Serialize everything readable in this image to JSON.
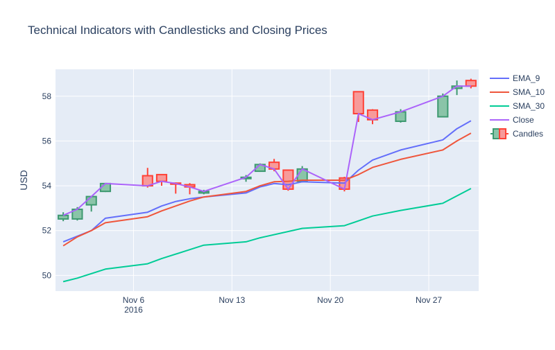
{
  "chart_data": {
    "type": "line",
    "title": "Technical Indicators with Candlesticks and Closing Prices",
    "xlabel": "",
    "ylabel": "USD",
    "x_ticks": [
      "Nov 6",
      "Nov 13",
      "Nov 20",
      "Nov 27"
    ],
    "x_tick_year": "2016",
    "y_ticks": [
      50,
      52,
      54,
      56,
      58
    ],
    "xlim": [
      "2016-11-01",
      "2016-11-30"
    ],
    "ylim": [
      49.3,
      59.2
    ],
    "grid": true,
    "legend_position": "top-right",
    "dates": [
      "2016-11-01",
      "2016-11-02",
      "2016-11-03",
      "2016-11-04",
      "2016-11-07",
      "2016-11-08",
      "2016-11-09",
      "2016-11-10",
      "2016-11-11",
      "2016-11-14",
      "2016-11-15",
      "2016-11-16",
      "2016-11-17",
      "2016-11-18",
      "2016-11-21",
      "2016-11-22",
      "2016-11-23",
      "2016-11-25",
      "2016-11-28",
      "2016-11-29",
      "2016-11-30"
    ],
    "candles": [
      {
        "open": 52.52,
        "high": 52.82,
        "low": 52.42,
        "close": 52.68
      },
      {
        "open": 52.52,
        "high": 53.05,
        "low": 52.45,
        "close": 52.95
      },
      {
        "open": 53.15,
        "high": 53.55,
        "low": 52.85,
        "close": 53.52
      },
      {
        "open": 53.75,
        "high": 54.12,
        "low": 53.72,
        "close": 54.1
      },
      {
        "open": 54.45,
        "high": 54.8,
        "low": 53.92,
        "close": 54.0
      },
      {
        "open": 54.5,
        "high": 54.52,
        "low": 54.0,
        "close": 54.2
      },
      {
        "open": 54.12,
        "high": 54.15,
        "low": 53.65,
        "close": 54.1
      },
      {
        "open": 54.05,
        "high": 54.12,
        "low": 53.62,
        "close": 53.95
      },
      {
        "open": 53.68,
        "high": 53.82,
        "low": 53.62,
        "close": 53.75
      },
      {
        "open": 54.32,
        "high": 54.48,
        "low": 54.18,
        "close": 54.38
      },
      {
        "open": 54.65,
        "high": 55.0,
        "low": 54.62,
        "close": 54.95
      },
      {
        "open": 55.05,
        "high": 55.2,
        "low": 54.65,
        "close": 54.75
      },
      {
        "open": 54.7,
        "high": 54.72,
        "low": 53.78,
        "close": 53.85
      },
      {
        "open": 54.2,
        "high": 54.88,
        "low": 54.15,
        "close": 54.75
      },
      {
        "open": 54.35,
        "high": 54.4,
        "low": 53.75,
        "close": 53.85
      },
      {
        "open": 58.2,
        "high": 58.2,
        "low": 56.85,
        "close": 57.22
      },
      {
        "open": 57.38,
        "high": 57.42,
        "low": 56.75,
        "close": 56.95
      },
      {
        "open": 56.88,
        "high": 57.42,
        "low": 56.82,
        "close": 57.3
      },
      {
        "open": 57.08,
        "high": 58.12,
        "low": 57.05,
        "close": 58.0
      },
      {
        "open": 58.35,
        "high": 58.7,
        "low": 58.05,
        "close": 58.45
      },
      {
        "open": 58.7,
        "high": 58.78,
        "low": 58.35,
        "close": 58.45
      }
    ],
    "series": [
      {
        "name": "EMA_9",
        "color": "#636efa",
        "points": [
          [
            "2016-11-01",
            51.5
          ],
          [
            "2016-11-03",
            52.0
          ],
          [
            "2016-11-04",
            52.55
          ],
          [
            "2016-11-07",
            52.82
          ],
          [
            "2016-11-08",
            53.1
          ],
          [
            "2016-11-09",
            53.3
          ],
          [
            "2016-11-10",
            53.42
          ],
          [
            "2016-11-11",
            53.5
          ],
          [
            "2016-11-14",
            53.68
          ],
          [
            "2016-11-15",
            53.95
          ],
          [
            "2016-11-16",
            54.1
          ],
          [
            "2016-11-17",
            54.05
          ],
          [
            "2016-11-18",
            54.18
          ],
          [
            "2016-11-21",
            54.12
          ],
          [
            "2016-11-22",
            54.7
          ],
          [
            "2016-11-23",
            55.15
          ],
          [
            "2016-11-25",
            55.6
          ],
          [
            "2016-11-28",
            56.05
          ],
          [
            "2016-11-29",
            56.55
          ],
          [
            "2016-11-30",
            56.9
          ]
        ]
      },
      {
        "name": "SMA_10",
        "color": "#ef553b",
        "points": [
          [
            "2016-11-01",
            51.32
          ],
          [
            "2016-11-02",
            51.72
          ],
          [
            "2016-11-03",
            52.0
          ],
          [
            "2016-11-04",
            52.35
          ],
          [
            "2016-11-07",
            52.62
          ],
          [
            "2016-11-08",
            52.88
          ],
          [
            "2016-11-09",
            53.1
          ],
          [
            "2016-11-10",
            53.32
          ],
          [
            "2016-11-11",
            53.5
          ],
          [
            "2016-11-14",
            53.75
          ],
          [
            "2016-11-15",
            54.0
          ],
          [
            "2016-11-16",
            54.18
          ],
          [
            "2016-11-17",
            54.2
          ],
          [
            "2016-11-18",
            54.25
          ],
          [
            "2016-11-21",
            54.25
          ],
          [
            "2016-11-22",
            54.5
          ],
          [
            "2016-11-23",
            54.82
          ],
          [
            "2016-11-25",
            55.18
          ],
          [
            "2016-11-28",
            55.6
          ],
          [
            "2016-11-29",
            56.0
          ],
          [
            "2016-11-30",
            56.35
          ]
        ]
      },
      {
        "name": "SMA_30",
        "color": "#00cc96",
        "points": [
          [
            "2016-11-01",
            49.72
          ],
          [
            "2016-11-02",
            49.88
          ],
          [
            "2016-11-04",
            50.28
          ],
          [
            "2016-11-07",
            50.52
          ],
          [
            "2016-11-08",
            50.75
          ],
          [
            "2016-11-10",
            51.15
          ],
          [
            "2016-11-11",
            51.35
          ],
          [
            "2016-11-14",
            51.5
          ],
          [
            "2016-11-15",
            51.68
          ],
          [
            "2016-11-18",
            52.1
          ],
          [
            "2016-11-21",
            52.22
          ],
          [
            "2016-11-23",
            52.65
          ],
          [
            "2016-11-25",
            52.9
          ],
          [
            "2016-11-28",
            53.22
          ],
          [
            "2016-11-30",
            53.88
          ]
        ]
      },
      {
        "name": "Close",
        "color": "#ab63fa",
        "points": [
          [
            "2016-11-01",
            52.68
          ],
          [
            "2016-11-02",
            52.95
          ],
          [
            "2016-11-03",
            53.52
          ],
          [
            "2016-11-04",
            54.1
          ],
          [
            "2016-11-07",
            54.0
          ],
          [
            "2016-11-08",
            54.2
          ],
          [
            "2016-11-09",
            54.1
          ],
          [
            "2016-11-10",
            53.95
          ],
          [
            "2016-11-11",
            53.75
          ],
          [
            "2016-11-14",
            54.38
          ],
          [
            "2016-11-15",
            54.95
          ],
          [
            "2016-11-16",
            54.75
          ],
          [
            "2016-11-17",
            53.85
          ],
          [
            "2016-11-18",
            54.75
          ],
          [
            "2016-11-21",
            53.85
          ],
          [
            "2016-11-22",
            57.22
          ],
          [
            "2016-11-23",
            56.95
          ],
          [
            "2016-11-25",
            57.3
          ],
          [
            "2016-11-28",
            58.0
          ],
          [
            "2016-11-29",
            58.45
          ],
          [
            "2016-11-30",
            58.45
          ]
        ]
      }
    ],
    "candles_name": "Candles",
    "candle_colors": {
      "increasing_line": "#3d9970",
      "increasing_fill": "#8ac4a8",
      "decreasing_line": "#ff4136",
      "decreasing_fill": "#f79a9a"
    },
    "plot_bgcolor": "#e5ecf6"
  }
}
